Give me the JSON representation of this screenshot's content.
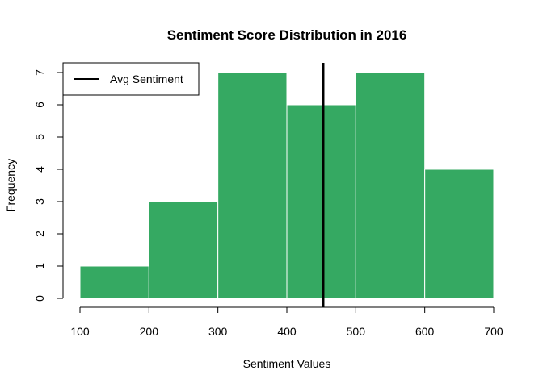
{
  "chart_data": {
    "type": "bar",
    "title": "Sentiment Score Distribution in 2016",
    "xlabel": "Sentiment Values",
    "ylabel": "Frequency",
    "bins": [
      {
        "start": 100,
        "end": 200,
        "count": 1
      },
      {
        "start": 200,
        "end": 300,
        "count": 3
      },
      {
        "start": 300,
        "end": 400,
        "count": 7
      },
      {
        "start": 400,
        "end": 500,
        "count": 6
      },
      {
        "start": 500,
        "end": 600,
        "count": 7
      },
      {
        "start": 600,
        "end": 700,
        "count": 4
      }
    ],
    "xlim": [
      100,
      700
    ],
    "ylim": [
      0,
      7
    ],
    "x_ticks": [
      "100",
      "200",
      "300",
      "400",
      "500",
      "600",
      "700"
    ],
    "y_ticks": [
      "0",
      "1",
      "2",
      "3",
      "4",
      "5",
      "6",
      "7"
    ],
    "average_line": {
      "label": "Avg Sentiment",
      "value": 453
    },
    "legend": {
      "position": "top-left",
      "entries": [
        "Avg Sentiment"
      ]
    },
    "bar_color": "#35a962",
    "bar_border_color": "#ffffff",
    "line_color": "#000000",
    "grid": false
  }
}
